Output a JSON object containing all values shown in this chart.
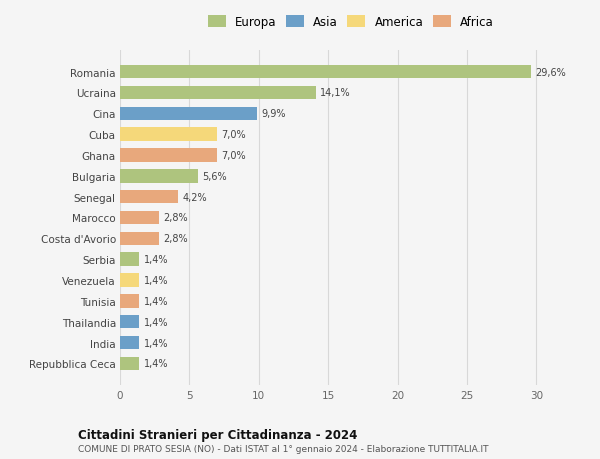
{
  "countries": [
    "Romania",
    "Ucraina",
    "Cina",
    "Cuba",
    "Ghana",
    "Bulgaria",
    "Senegal",
    "Marocco",
    "Costa d'Avorio",
    "Serbia",
    "Venezuela",
    "Tunisia",
    "Thailandia",
    "India",
    "Repubblica Ceca"
  ],
  "values": [
    29.6,
    14.1,
    9.9,
    7.0,
    7.0,
    5.6,
    4.2,
    2.8,
    2.8,
    1.4,
    1.4,
    1.4,
    1.4,
    1.4,
    1.4
  ],
  "labels": [
    "29,6%",
    "14,1%",
    "9,9%",
    "7,0%",
    "7,0%",
    "5,6%",
    "4,2%",
    "2,8%",
    "2,8%",
    "1,4%",
    "1,4%",
    "1,4%",
    "1,4%",
    "1,4%",
    "1,4%"
  ],
  "colors": [
    "#aec47e",
    "#aec47e",
    "#6b9fc8",
    "#f5d87a",
    "#e8a87c",
    "#aec47e",
    "#e8a87c",
    "#e8a87c",
    "#e8a87c",
    "#aec47e",
    "#f5d87a",
    "#e8a87c",
    "#6b9fc8",
    "#6b9fc8",
    "#aec47e"
  ],
  "legend_labels": [
    "Europa",
    "Asia",
    "America",
    "Africa"
  ],
  "legend_colors": [
    "#aec47e",
    "#6b9fc8",
    "#f5d87a",
    "#e8a87c"
  ],
  "title": "Cittadini Stranieri per Cittadinanza - 2024",
  "subtitle": "COMUNE DI PRATO SESIA (NO) - Dati ISTAT al 1° gennaio 2024 - Elaborazione TUTTITALIA.IT",
  "xlim": [
    0,
    32
  ],
  "xticks": [
    0,
    5,
    10,
    15,
    20,
    25,
    30
  ],
  "background_color": "#f5f5f5",
  "grid_color": "#d8d8d8",
  "bar_height": 0.65
}
